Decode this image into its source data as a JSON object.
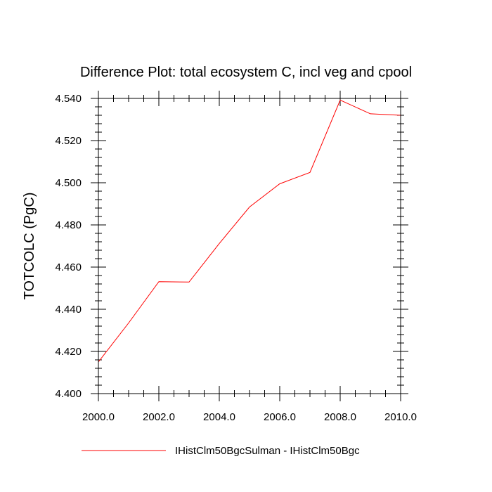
{
  "chart_data": {
    "type": "line",
    "title": "Difference Plot: total ecosystem C, incl veg and cpool",
    "xlabel": "",
    "ylabel": "TOTCOLC  (PgC)",
    "xlim": [
      2000,
      2010
    ],
    "ylim": [
      4.4,
      4.54
    ],
    "x_ticks": [
      "2000.0",
      "2002.0",
      "2004.0",
      "2006.0",
      "2008.0",
      "2010.0"
    ],
    "y_ticks": [
      "4.400",
      "4.420",
      "4.440",
      "4.460",
      "4.480",
      "4.500",
      "4.520",
      "4.540"
    ],
    "x_tick_values": [
      2000,
      2002,
      2004,
      2006,
      2008,
      2010
    ],
    "y_tick_values": [
      4.4,
      4.42,
      4.44,
      4.46,
      4.48,
      4.5,
      4.52,
      4.54
    ],
    "grid": false,
    "legend_position": "bottom",
    "series": [
      {
        "name": "IHistClm50BgcSulman - IHistClm50Bgc",
        "color": "#ff0000",
        "x": [
          2000,
          2001,
          2002,
          2003,
          2004,
          2005,
          2006,
          2007,
          2008,
          2009,
          2010
        ],
        "values": [
          4.415,
          4.4335,
          4.4531,
          4.4529,
          4.4712,
          4.4885,
          4.4995,
          4.5049,
          4.5392,
          4.5327,
          4.532
        ]
      }
    ]
  }
}
